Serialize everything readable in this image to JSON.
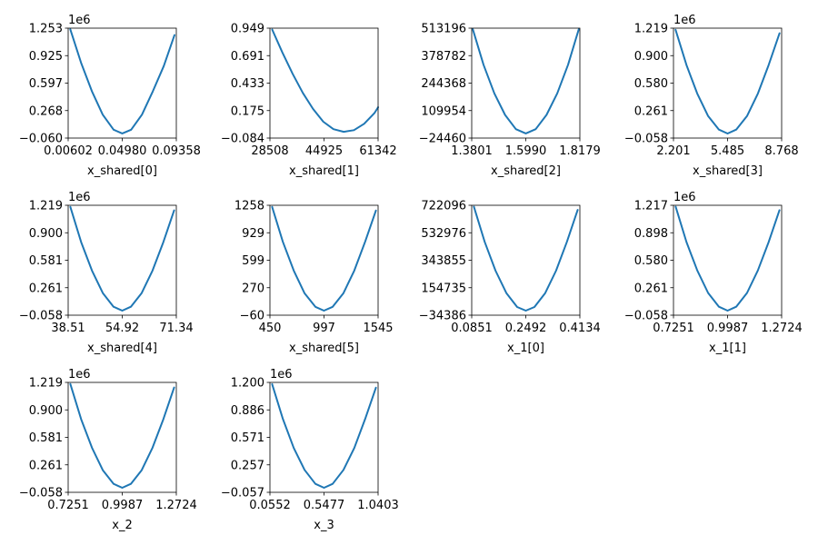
{
  "figure": {
    "background": "#ffffff",
    "line_color": "#1f77b4"
  },
  "chart_data": [
    {
      "type": "line",
      "xlabel": "x_shared[0]",
      "xticks": [
        "0.00602",
        "0.04980",
        "0.09358"
      ],
      "yticks": [
        "−0.060",
        "0.268",
        "0.597",
        "0.925",
        "1.253"
      ],
      "scale_label": "1e6",
      "xlim": [
        0.00602,
        0.09358
      ],
      "ylim": [
        -0.06,
        1.253
      ],
      "x": [
        0.0077,
        0.0165,
        0.0252,
        0.034,
        0.0428,
        0.0498,
        0.057,
        0.0658,
        0.0746,
        0.0834,
        0.0921
      ],
      "y": [
        1.24,
        0.84,
        0.5,
        0.22,
        0.04,
        -0.005,
        0.04,
        0.22,
        0.5,
        0.8,
        1.17
      ]
    },
    {
      "type": "line",
      "xlabel": "x_shared[1]",
      "xticks": [
        "28508",
        "44925",
        "61342"
      ],
      "yticks": [
        "−0.084",
        "0.175",
        "0.433",
        "0.691",
        "0.949"
      ],
      "scale_label": "",
      "xlim": [
        28508,
        61342
      ],
      "ylim": [
        -0.084,
        0.949
      ],
      "x": [
        29200,
        32300,
        35400,
        38500,
        41600,
        44700,
        47800,
        50900,
        54000,
        57100,
        60200,
        61342
      ],
      "y": [
        0.935,
        0.72,
        0.52,
        0.34,
        0.19,
        0.07,
        0.0,
        -0.025,
        -0.01,
        0.05,
        0.15,
        0.205
      ]
    },
    {
      "type": "line",
      "xlabel": "x_shared[2]",
      "xticks": [
        "1.3801",
        "1.5990",
        "1.8179"
      ],
      "yticks": [
        "−24460",
        "109954",
        "244368",
        "378782",
        "513196"
      ],
      "scale_label": "",
      "xlim": [
        1.3801,
        1.8179
      ],
      "ylim": [
        -24460,
        513196
      ],
      "x": [
        1.3845,
        1.4281,
        1.4716,
        1.5152,
        1.5588,
        1.599,
        1.6392,
        1.6828,
        1.7264,
        1.7699,
        1.8135
      ],
      "y": [
        508000,
        334000,
        194000,
        89000,
        19000,
        -2000,
        19000,
        89000,
        194000,
        334000,
        508000
      ]
    },
    {
      "type": "line",
      "xlabel": "x_shared[3]",
      "xticks": [
        "2.201",
        "5.485",
        "8.768"
      ],
      "yticks": [
        "−0.058",
        "0.261",
        "0.580",
        "0.900",
        "1.219"
      ],
      "scale_label": "1e6",
      "xlim": [
        2.201,
        8.768
      ],
      "ylim": [
        -0.058,
        1.219
      ],
      "x": [
        2.33,
        2.99,
        3.64,
        4.3,
        4.96,
        5.485,
        6.01,
        6.67,
        7.33,
        7.98,
        8.64
      ],
      "y": [
        1.2,
        0.79,
        0.46,
        0.2,
        0.04,
        -0.005,
        0.04,
        0.2,
        0.46,
        0.79,
        1.16
      ]
    },
    {
      "type": "line",
      "xlabel": "x_shared[4]",
      "xticks": [
        "38.51",
        "54.92",
        "71.34"
      ],
      "yticks": [
        "−0.058",
        "0.261",
        "0.581",
        "0.900",
        "1.219"
      ],
      "scale_label": "1e6",
      "xlim": [
        38.51,
        71.34
      ],
      "ylim": [
        -0.058,
        1.219
      ],
      "x": [
        39.17,
        42.45,
        45.73,
        49.01,
        52.29,
        54.92,
        57.55,
        60.83,
        64.11,
        67.39,
        70.68
      ],
      "y": [
        1.2,
        0.79,
        0.46,
        0.2,
        0.04,
        -0.005,
        0.04,
        0.2,
        0.46,
        0.79,
        1.16
      ]
    },
    {
      "type": "line",
      "xlabel": "x_shared[5]",
      "xticks": [
        "450",
        "997",
        "1545"
      ],
      "yticks": [
        "−60",
        "270",
        "599",
        "929",
        "1258"
      ],
      "scale_label": "",
      "xlim": [
        450,
        1545
      ],
      "ylim": [
        -60,
        1258
      ],
      "x": [
        472,
        581,
        691,
        800,
        910,
        997,
        1085,
        1194,
        1304,
        1413,
        1523
      ],
      "y": [
        1238,
        820,
        475,
        205,
        40,
        -5,
        40,
        205,
        475,
        820,
        1195
      ]
    },
    {
      "type": "line",
      "xlabel": "x_1[0]",
      "xticks": [
        "0.0851",
        "0.2492",
        "0.4134"
      ],
      "yticks": [
        "−34386",
        "154735",
        "343855",
        "532976",
        "722096"
      ],
      "scale_label": "",
      "xlim": [
        0.0851,
        0.4134
      ],
      "ylim": [
        -34386,
        722096
      ],
      "x": [
        0.0917,
        0.1245,
        0.1573,
        0.1902,
        0.223,
        0.2492,
        0.2755,
        0.3083,
        0.3411,
        0.374,
        0.4068
      ],
      "y": [
        712000,
        470000,
        272000,
        118000,
        22000,
        -3000,
        22000,
        118000,
        272000,
        470000,
        690000
      ]
    },
    {
      "type": "line",
      "xlabel": "x_1[1]",
      "xticks": [
        "0.7251",
        "0.9987",
        "1.2724"
      ],
      "yticks": [
        "−0.058",
        "0.261",
        "0.580",
        "0.898",
        "1.217"
      ],
      "scale_label": "1e6",
      "xlim": [
        0.7251,
        1.2724
      ],
      "ylim": [
        -0.058,
        1.217
      ],
      "x": [
        0.736,
        0.7908,
        0.8455,
        0.9002,
        0.955,
        0.9987,
        1.0425,
        1.0972,
        1.152,
        1.2067,
        1.2615
      ],
      "y": [
        1.2,
        0.79,
        0.46,
        0.2,
        0.04,
        -0.005,
        0.04,
        0.2,
        0.46,
        0.79,
        1.16
      ]
    },
    {
      "type": "line",
      "xlabel": "x_2",
      "xticks": [
        "0.7251",
        "0.9987",
        "1.2724"
      ],
      "yticks": [
        "−0.058",
        "0.261",
        "0.581",
        "0.900",
        "1.219"
      ],
      "scale_label": "1e6",
      "xlim": [
        0.7251,
        1.2724
      ],
      "ylim": [
        -0.058,
        1.219
      ],
      "x": [
        0.736,
        0.7908,
        0.8455,
        0.9002,
        0.955,
        0.9987,
        1.0425,
        1.0972,
        1.152,
        1.2067,
        1.2615
      ],
      "y": [
        1.2,
        0.79,
        0.46,
        0.2,
        0.04,
        -0.005,
        0.04,
        0.2,
        0.46,
        0.79,
        1.16
      ]
    },
    {
      "type": "line",
      "xlabel": "x_3",
      "xticks": [
        "0.0552",
        "0.5477",
        "1.0403"
      ],
      "yticks": [
        "−0.057",
        "0.257",
        "0.571",
        "0.886",
        "1.200"
      ],
      "scale_label": "1e6",
      "xlim": [
        0.0552,
        1.0403
      ],
      "ylim": [
        -0.057,
        1.2
      ],
      "x": [
        0.0749,
        0.1734,
        0.2719,
        0.3704,
        0.4689,
        0.5477,
        0.6265,
        0.725,
        0.8235,
        0.922,
        1.0206
      ],
      "y": [
        1.18,
        0.78,
        0.45,
        0.2,
        0.04,
        -0.005,
        0.04,
        0.2,
        0.45,
        0.78,
        1.14
      ]
    }
  ]
}
